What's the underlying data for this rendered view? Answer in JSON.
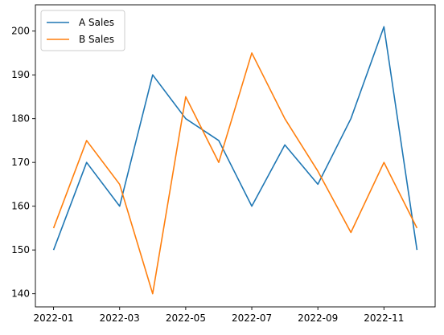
{
  "chart_data": {
    "type": "line",
    "title": "",
    "xlabel": "",
    "ylabel": "",
    "x": [
      "2022-01",
      "2022-02",
      "2022-03",
      "2022-04",
      "2022-05",
      "2022-06",
      "2022-07",
      "2022-08",
      "2022-09",
      "2022-10",
      "2022-11",
      "2022-12"
    ],
    "x_tick_labels": [
      "2022-01",
      "2022-03",
      "2022-05",
      "2022-07",
      "2022-09",
      "2022-11"
    ],
    "y_tick_labels": [
      "140",
      "150",
      "160",
      "170",
      "180",
      "190",
      "200"
    ],
    "ylim": [
      137,
      206
    ],
    "grid": false,
    "legend_position": "top-left",
    "series": [
      {
        "name": "A Sales",
        "color": "#1f77b4",
        "values": [
          150,
          170,
          160,
          190,
          180,
          175,
          160,
          174,
          165,
          180,
          201,
          150
        ]
      },
      {
        "name": "B Sales",
        "color": "#ff7f0e",
        "values": [
          155,
          175,
          165,
          140,
          185,
          170,
          195,
          180,
          168,
          154,
          170,
          155
        ]
      }
    ]
  }
}
